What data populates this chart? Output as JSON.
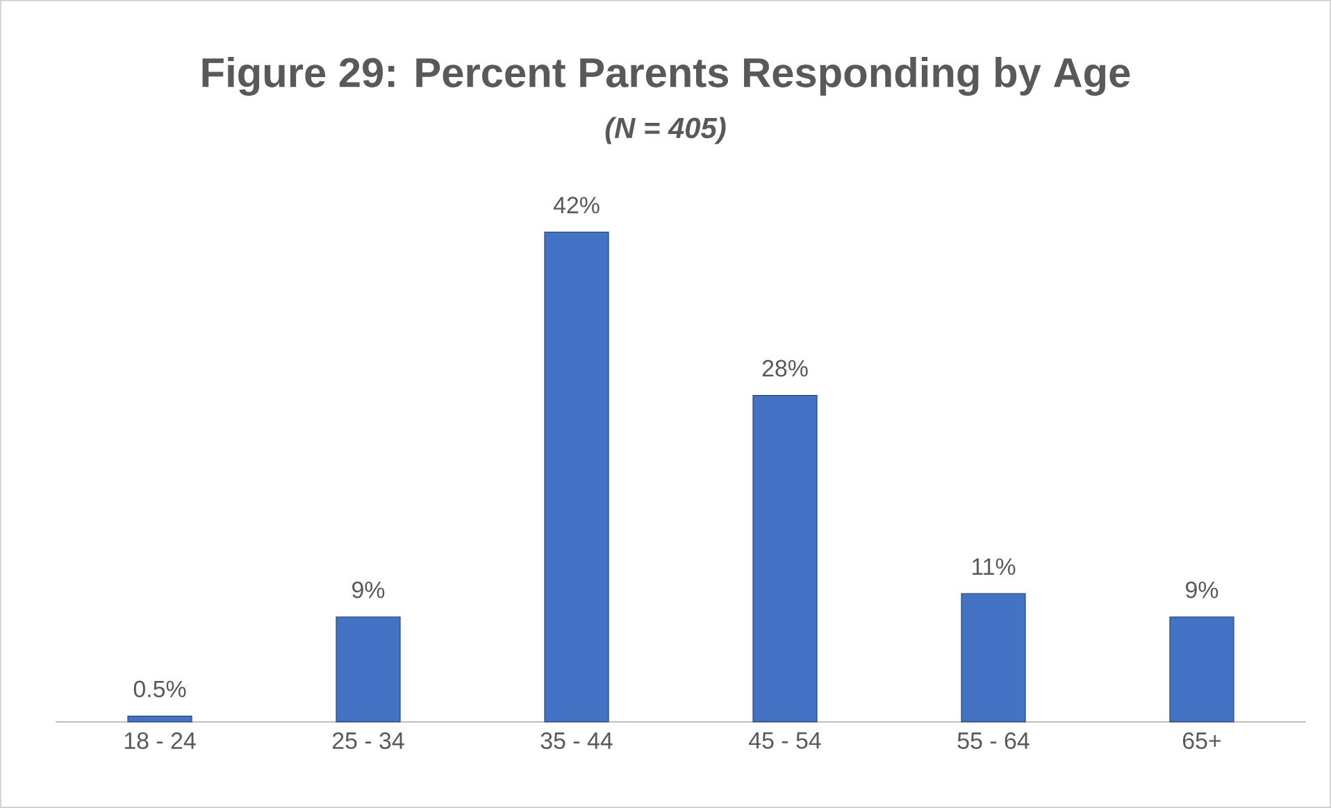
{
  "chart_data": {
    "type": "bar",
    "title": "Figure 29: Percent Parents Responding by Age",
    "subtitle": "(N = 405)",
    "categories": [
      "18 - 24",
      "25 - 34",
      "35 - 44",
      "45 - 54",
      "55 - 64",
      "65+"
    ],
    "values": [
      0.5,
      9,
      42,
      28,
      11,
      9
    ],
    "value_labels": [
      "0.5%",
      "9%",
      "42%",
      "28%",
      "11%",
      "9%"
    ],
    "color": "#4472c4"
  }
}
